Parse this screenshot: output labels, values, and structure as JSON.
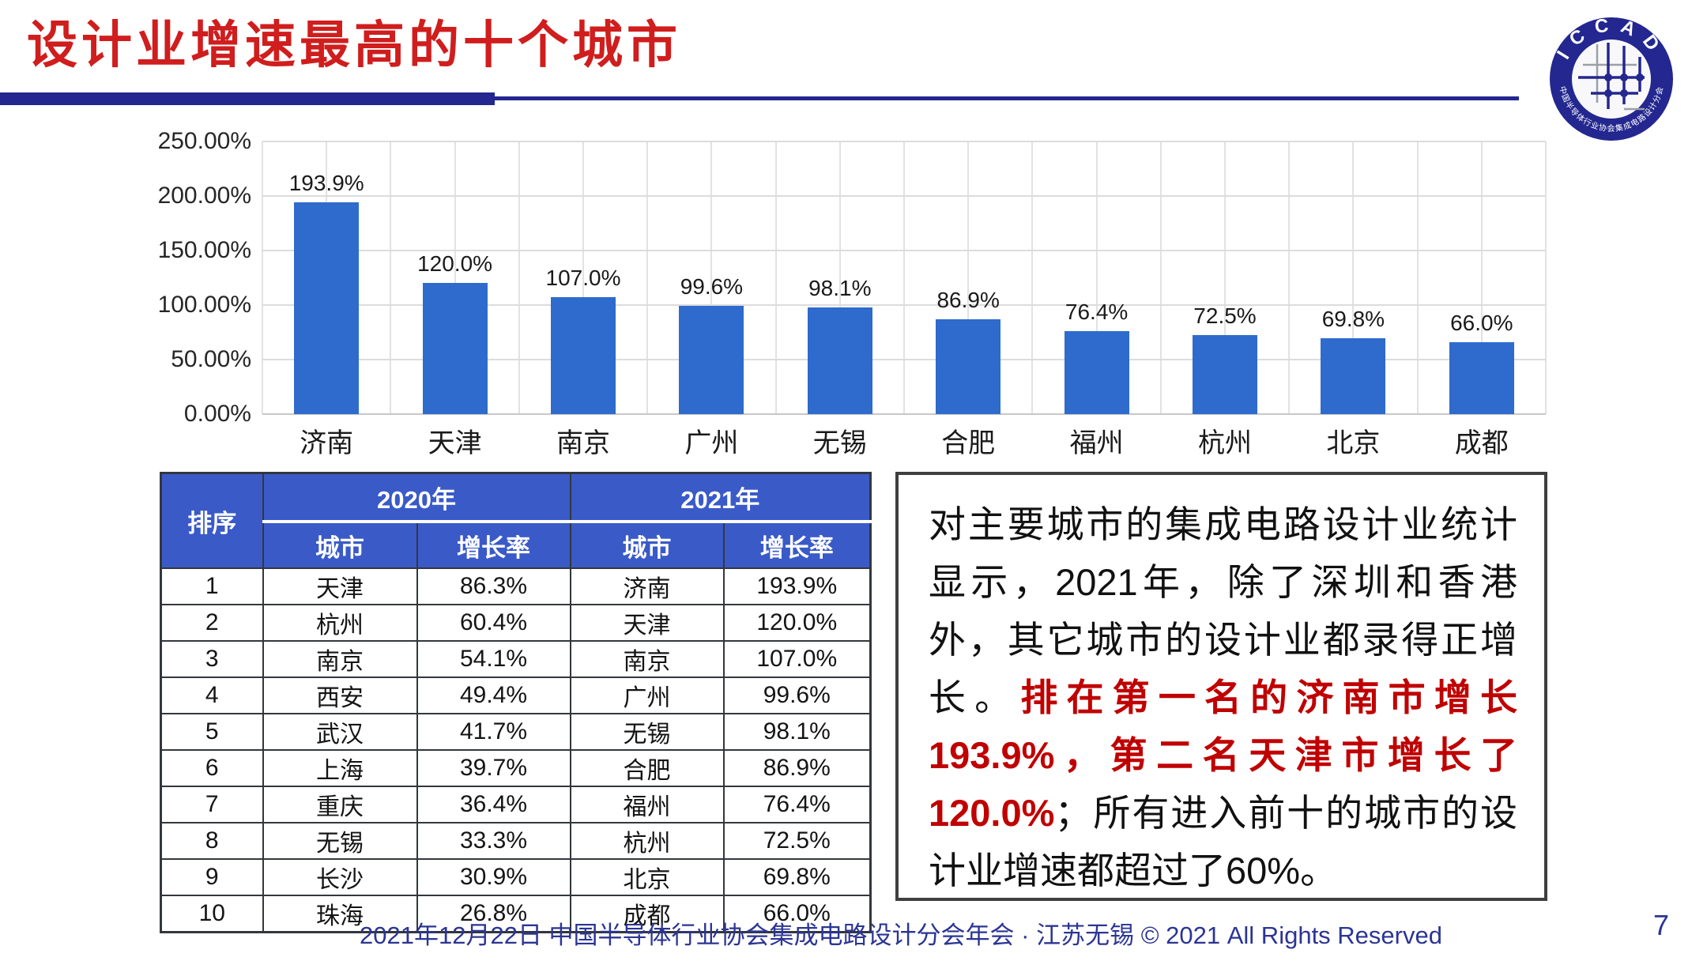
{
  "slide": {
    "title": "设计业增速最高的十个城市",
    "footer": "2021年12月22日 中国半导体行业协会集成电路设计分会年会 · 江苏无锡 © 2021 All Rights Reserved",
    "page_number": "7",
    "title_color": "#D01D1D",
    "accent_navy": "#23278F"
  },
  "logo": {
    "top_text": "ICCAD",
    "ring_text": "中国半导体行业协会集成电路设计分会",
    "color": "#23278F"
  },
  "chart_data": {
    "type": "bar",
    "title": "",
    "xlabel": "",
    "ylabel": "",
    "categories": [
      "济南",
      "天津",
      "南京",
      "广州",
      "无锡",
      "合肥",
      "福州",
      "杭州",
      "北京",
      "成都"
    ],
    "values": [
      193.9,
      120.0,
      107.0,
      99.6,
      98.1,
      86.9,
      76.4,
      72.5,
      69.8,
      66.0
    ],
    "labels": [
      "193.9%",
      "120.0%",
      "107.0%",
      "99.6%",
      "98.1%",
      "86.9%",
      "76.4%",
      "72.5%",
      "69.8%",
      "66.0%"
    ],
    "ytick_labels": [
      "250.00%",
      "200.00%",
      "150.00%",
      "100.00%",
      "50.00%",
      "0.00%"
    ],
    "ytick_values": [
      250,
      200,
      150,
      100,
      50,
      0
    ],
    "ylim": [
      0,
      250
    ],
    "grid": true,
    "legend": "none",
    "bar_color": "#2E6BCC"
  },
  "table": {
    "corner_header": "排序",
    "group_headers": [
      "2020年",
      "2021年"
    ],
    "sub_headers": [
      "城市",
      "增长率",
      "城市",
      "增长率"
    ],
    "header_bg": "#3A5AC8",
    "rows": [
      [
        "1",
        "天津",
        "86.3%",
        "济南",
        "193.9%"
      ],
      [
        "2",
        "杭州",
        "60.4%",
        "天津",
        "120.0%"
      ],
      [
        "3",
        "南京",
        "54.1%",
        "南京",
        "107.0%"
      ],
      [
        "4",
        "西安",
        "49.4%",
        "广州",
        "99.6%"
      ],
      [
        "5",
        "武汉",
        "41.7%",
        "无锡",
        "98.1%"
      ],
      [
        "6",
        "上海",
        "39.7%",
        "合肥",
        "86.9%"
      ],
      [
        "7",
        "重庆",
        "36.4%",
        "福州",
        "76.4%"
      ],
      [
        "8",
        "无锡",
        "33.3%",
        "杭州",
        "72.5%"
      ],
      [
        "9",
        "长沙",
        "30.9%",
        "北京",
        "69.8%"
      ],
      [
        "10",
        "珠海",
        "26.8%",
        "成都",
        "66.0%"
      ]
    ]
  },
  "textbox": {
    "segments": [
      {
        "text": "对主要城市的集成电路设计业统计显示，2021年，除了深圳和香港外，其它城市的设计业都录得正增长。",
        "style": "normal"
      },
      {
        "text": "排在第一名的济南市增长193.9%，第二名天津市增长了120.0%",
        "style": "red-bold"
      },
      {
        "text": "；所有进入前十的城市的设计业增速都超过了60%。",
        "style": "normal"
      }
    ]
  }
}
